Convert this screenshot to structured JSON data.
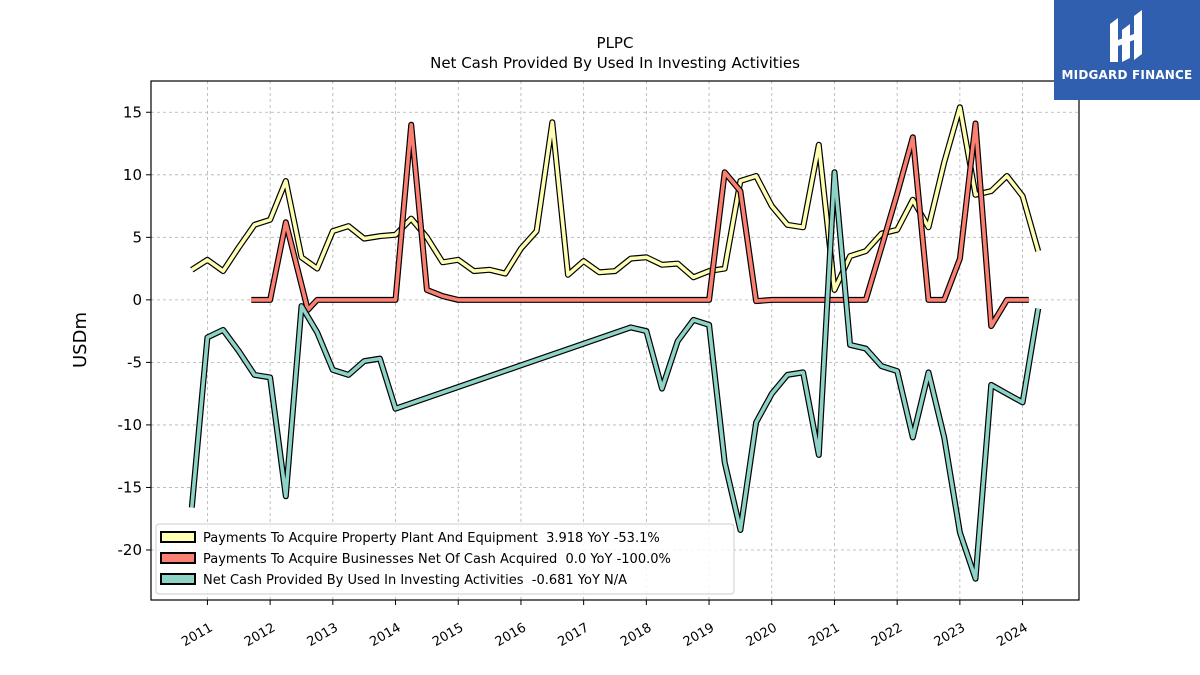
{
  "chart_data": {
    "type": "line",
    "title": "PLPC",
    "subtitle": "Net Cash Provided By Used In Investing Activities",
    "ylabel": "USDm",
    "xlabel": "",
    "ylim": [
      -24,
      17.5
    ],
    "yticks": [
      15,
      10,
      5,
      0,
      -5,
      -10,
      -15,
      -20
    ],
    "xlim": [
      2010.1,
      2024.9
    ],
    "xticks": [
      "2011",
      "2012",
      "2013",
      "2014",
      "2015",
      "2016",
      "2017",
      "2018",
      "2019",
      "2020",
      "2021",
      "2022",
      "2023",
      "2024"
    ],
    "grid": true,
    "legend_position": "lower-left",
    "series": [
      {
        "name": "Payments To Acquire Property Plant And Equipment  3.918 YoY -53.1%",
        "color": "#ffffb3",
        "x": [
          2010.75,
          2011.0,
          2011.25,
          2011.5,
          2011.75,
          2012.0,
          2012.25,
          2012.5,
          2012.75,
          2013.0,
          2013.25,
          2013.5,
          2013.75,
          2014.0,
          2014.25,
          2014.5,
          2014.75,
          2015.0,
          2015.25,
          2015.5,
          2015.75,
          2016.0,
          2016.25,
          2016.5,
          2016.75,
          2017.0,
          2017.25,
          2017.5,
          2017.75,
          2018.0,
          2018.25,
          2018.5,
          2018.75,
          2019.0,
          2019.25,
          2019.5,
          2019.75,
          2020.0,
          2020.25,
          2020.5,
          2020.75,
          2021.0,
          2021.25,
          2021.5,
          2021.75,
          2022.0,
          2022.25,
          2022.5,
          2022.75,
          2023.0,
          2023.25,
          2023.5,
          2023.75,
          2024.0,
          2024.25
        ],
        "values": [
          2.4,
          3.2,
          2.3,
          4.2,
          6.0,
          6.4,
          9.5,
          3.4,
          2.5,
          5.5,
          5.9,
          4.9,
          5.1,
          5.2,
          6.5,
          5.0,
          3.0,
          3.2,
          2.3,
          2.4,
          2.1,
          4.1,
          5.5,
          14.2,
          2.0,
          3.1,
          2.2,
          2.3,
          3.3,
          3.4,
          2.8,
          2.9,
          1.8,
          2.3,
          2.5,
          9.5,
          9.9,
          7.5,
          6.0,
          5.8,
          12.4,
          0.8,
          3.5,
          3.9,
          5.3,
          5.6,
          8.0,
          5.8,
          11.0,
          15.4,
          8.4,
          8.7,
          9.9,
          8.3,
          3.9
        ]
      },
      {
        "name": "Payments To Acquire Businesses Net Of Cash Acquired  0.0 YoY -100.0%",
        "color": "#fb8072",
        "x": [
          2011.7,
          2012.0,
          2012.25,
          2012.6,
          2012.75,
          2013.0,
          2013.25,
          2013.5,
          2013.75,
          2014.0,
          2014.25,
          2014.5,
          2014.75,
          2015.0,
          2015.5,
          2016.0,
          2016.5,
          2017.0,
          2017.5,
          2018.0,
          2018.5,
          2019.0,
          2019.25,
          2019.5,
          2019.75,
          2020.0,
          2020.5,
          2021.0,
          2021.5,
          2021.75,
          2022.0,
          2022.25,
          2022.5,
          2022.75,
          2023.0,
          2023.25,
          2023.5,
          2023.75,
          2024.0,
          2024.1
        ],
        "values": [
          0.0,
          0.0,
          6.2,
          -0.8,
          0.0,
          0.0,
          0.0,
          0.0,
          0.0,
          0.0,
          14.0,
          0.8,
          0.3,
          0.0,
          0.0,
          0.0,
          0.0,
          0.0,
          0.0,
          0.0,
          0.0,
          0.0,
          10.2,
          8.7,
          -0.1,
          0.0,
          0.0,
          0.0,
          0.0,
          4.2,
          8.5,
          13.0,
          0.0,
          0.0,
          3.3,
          14.1,
          -2.1,
          0.0,
          0.0,
          0.0
        ]
      },
      {
        "name": "Net Cash Provided By Used In Investing Activities  -0.681 YoY N/A",
        "color": "#8dd3c7",
        "x": [
          2010.75,
          2011.0,
          2011.25,
          2011.5,
          2011.75,
          2012.0,
          2012.25,
          2012.5,
          2012.75,
          2013.0,
          2013.25,
          2013.5,
          2013.75,
          2014.0,
          2017.75,
          2018.0,
          2018.25,
          2018.5,
          2018.75,
          2019.0,
          2019.25,
          2019.5,
          2019.75,
          2020.0,
          2020.25,
          2020.5,
          2020.75,
          2021.0,
          2021.25,
          2021.5,
          2021.75,
          2022.0,
          2022.25,
          2022.5,
          2022.75,
          2023.0,
          2023.25,
          2023.5,
          2023.75,
          2024.0,
          2024.25
        ],
        "values": [
          -16.6,
          -3.0,
          -2.4,
          -4.1,
          -6.0,
          -6.2,
          -15.7,
          -0.5,
          -2.6,
          -5.6,
          -6.0,
          -4.9,
          -4.7,
          -8.7,
          -2.2,
          -2.5,
          -7.1,
          -3.3,
          -1.6,
          -2.0,
          -13.0,
          -18.4,
          -9.8,
          -7.5,
          -6.0,
          -5.8,
          -12.4,
          10.2,
          -3.6,
          -3.9,
          -5.3,
          -5.7,
          -11.0,
          -5.8,
          -11.0,
          -18.6,
          -22.3,
          -6.8,
          -7.5,
          -8.2,
          -0.7
        ]
      }
    ]
  },
  "logo": {
    "text": "MIDGARD FINANCE",
    "color": "#2f5fae"
  }
}
